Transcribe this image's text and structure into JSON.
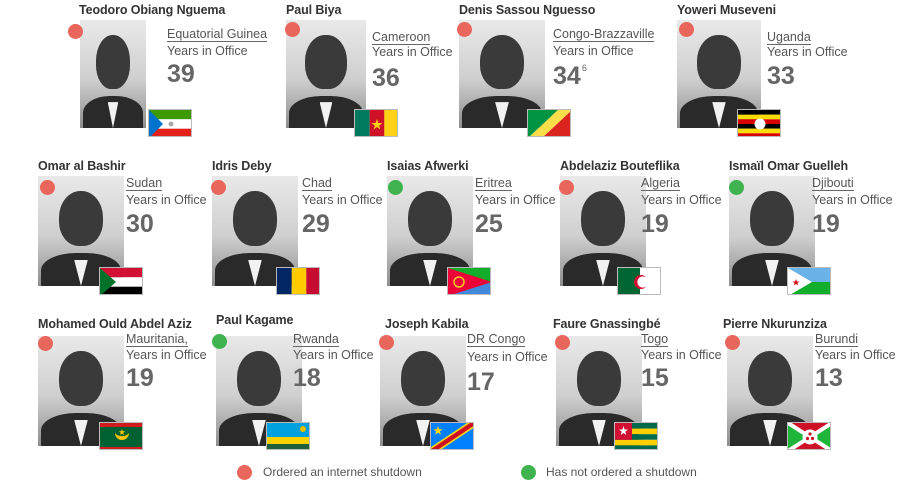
{
  "colors": {
    "shutdown": "#e8665c",
    "no_shutdown": "#3fb34f"
  },
  "leaders": [
    {
      "name": "Teodoro Obiang Nguema",
      "country": "Equatorial Guinea",
      "years_label": "Years in Office",
      "years": "39",
      "status": "shutdown",
      "flag": "flag-equatorial-guinea"
    },
    {
      "name": "Paul Biya",
      "country": "Cameroon",
      "years_label": "Years in Office",
      "years": "36",
      "status": "shutdown",
      "flag": "flag-cameroon"
    },
    {
      "name": "Denis Sassou Nguesso",
      "country": "Congo-Brazzaville",
      "years_label": "Years in Office",
      "years": "34",
      "footnote": "6",
      "status": "shutdown",
      "flag": "flag-congo-brazzaville"
    },
    {
      "name": "Yoweri Museveni",
      "country": "Uganda",
      "years_label": "Years in Office",
      "years": "33",
      "status": "shutdown",
      "flag": "flag-uganda"
    },
    {
      "name": "Omar al Bashir",
      "country": "Sudan",
      "years_label": "Years in Office",
      "years": "30",
      "status": "shutdown",
      "flag": "flag-sudan"
    },
    {
      "name": "Idris Deby",
      "country": "Chad",
      "years_label": "Years in Office",
      "years": "29",
      "status": "shutdown",
      "flag": "flag-chad"
    },
    {
      "name": "Isaias Afwerki",
      "country": "Eritrea",
      "years_label": "Years in Office",
      "years": "25",
      "status": "no_shutdown",
      "flag": "flag-eritrea"
    },
    {
      "name": "Abdelaziz Bouteflika",
      "country": "Algeria",
      "years_label": "Years in Office",
      "years": "19",
      "status": "shutdown",
      "flag": "flag-algeria"
    },
    {
      "name": "Ismaïl Omar Guelleh",
      "country": "Djibouti",
      "years_label": "Years in Office",
      "years": "19",
      "status": "no_shutdown",
      "flag": "flag-djibouti"
    },
    {
      "name": "Mohamed Ould Abdel Aziz",
      "country": "Mauritania,",
      "years_label": "Years in Office",
      "years": "19",
      "status": "shutdown",
      "flag": "flag-mauritania"
    },
    {
      "name": "Paul Kagame",
      "country": "Rwanda",
      "years_label": "Years in Office",
      "years": "18",
      "status": "no_shutdown",
      "flag": "flag-rwanda"
    },
    {
      "name": "Joseph Kabila",
      "country": "DR Congo",
      "years_label": "Years in Office",
      "years": "17",
      "status": "shutdown",
      "flag": "flag-dr-congo"
    },
    {
      "name": "Faure Gnassingbé",
      "country": "Togo",
      "years_label": "Years in Office",
      "years": "15",
      "status": "shutdown",
      "flag": "flag-togo"
    },
    {
      "name": "Pierre Nkurunziza",
      "country": "Burundi",
      "years_label": "Years in Office",
      "years": "13",
      "status": "shutdown",
      "flag": "flag-burundi"
    }
  ],
  "legend": {
    "shutdown_label": "Ordered an internet shutdown",
    "no_shutdown_label": "Has not ordered a shutdown"
  }
}
